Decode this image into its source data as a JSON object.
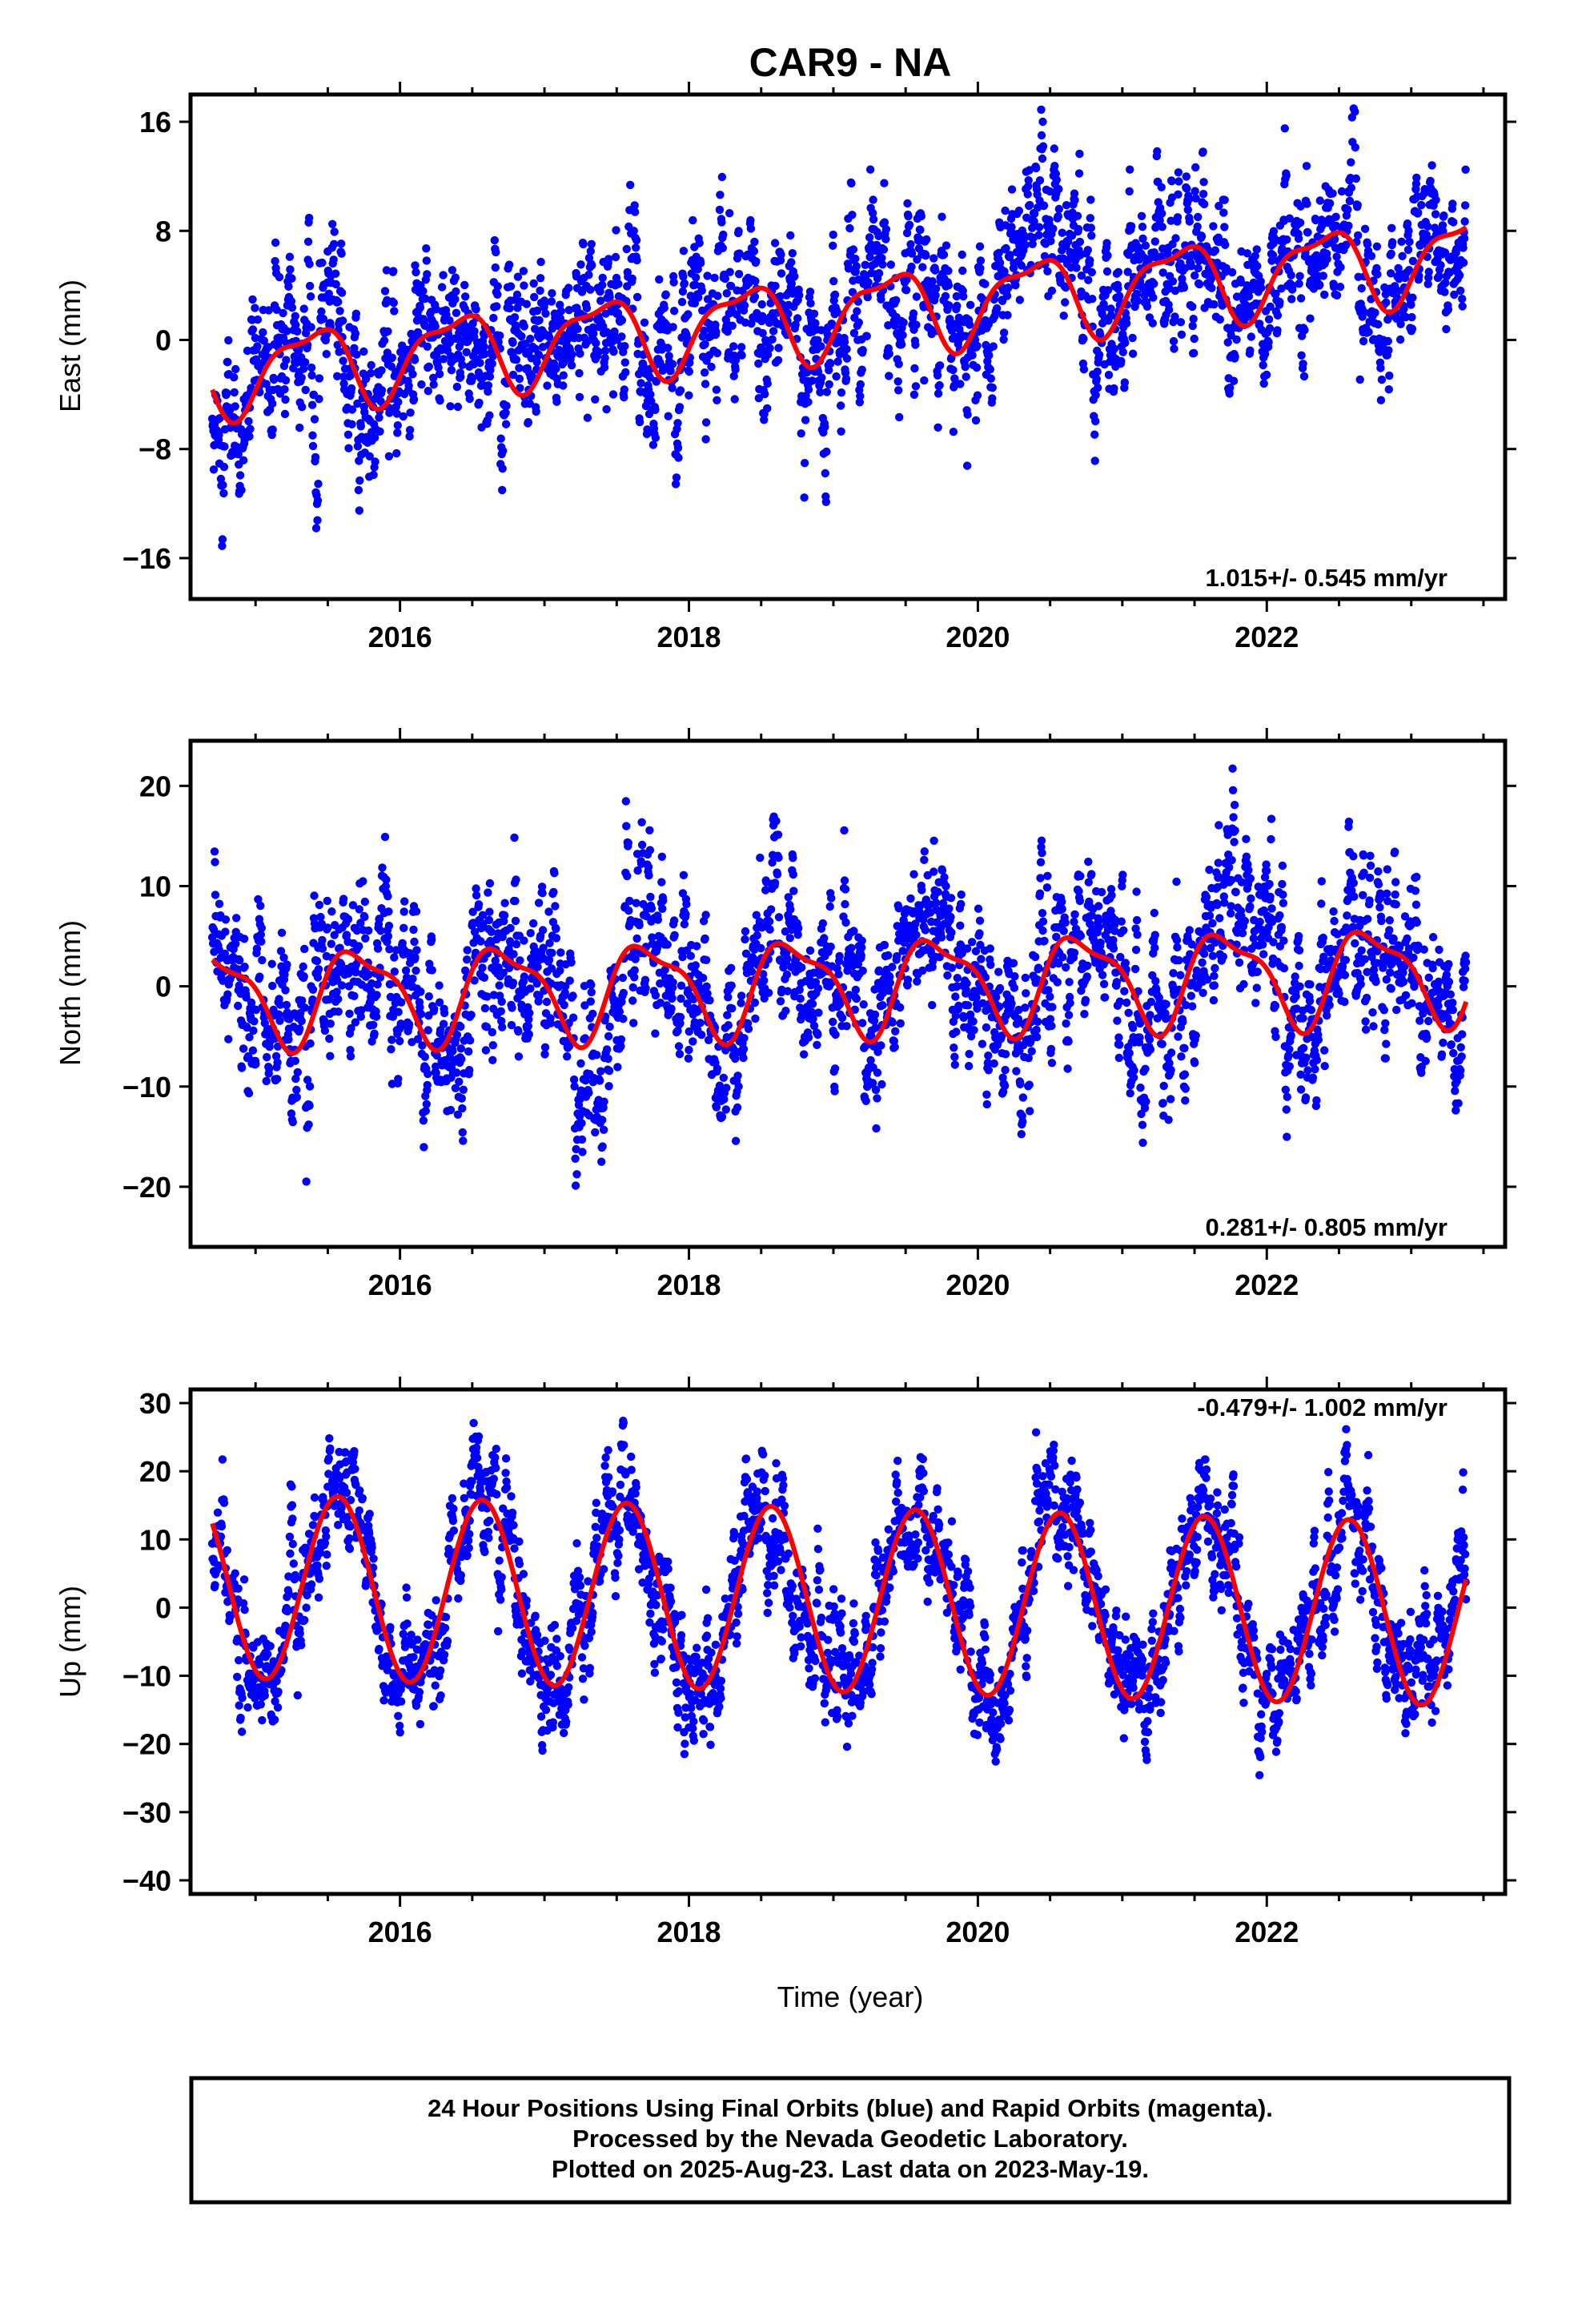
{
  "title": "CAR9 - NA",
  "colors": {
    "points": "#0000ff",
    "fit": "#ff0000",
    "frame": "#000000"
  },
  "x_tick_labels": [
    "2016",
    "2018",
    "2020",
    "2022"
  ],
  "x_axis_label": "Time (year)",
  "footer": {
    "line1": "24 Hour Positions Using Final Orbits (blue) and Rapid Orbits (magenta).",
    "line2": "Processed by the Nevada Geodetic Laboratory.",
    "line3": "Plotted on 2025-Aug-23. Last data on 2023-May-19."
  },
  "chart_data": [
    {
      "type": "scatter",
      "ylabel": "East (mm)",
      "rate_label": "1.015+/- 0.545 mm/yr",
      "rate_position": "bottom-right",
      "xlim": [
        2014.55,
        2023.65
      ],
      "ylim": [
        -19,
        18
      ],
      "yticks": [
        -16,
        -8,
        0,
        8,
        16
      ],
      "ytick_labels": [
        "−16",
        "−8",
        "0",
        "8",
        "16"
      ],
      "data_range": [
        2014.7,
        2023.38
      ],
      "fit": {
        "offset": -2.5,
        "trend": 1.015,
        "t0": 2014.7,
        "annual_amp": 2.8,
        "annual_phase": 5.5,
        "semiannual_amp": 1.0,
        "semiannual_phase": 0.5
      },
      "scatter_sigma": 3.6,
      "series": [
        {
          "name": "Final Orbits (blue)",
          "style": "points"
        },
        {
          "name": "",
          "style": "fit-line"
        }
      ]
    },
    {
      "type": "scatter",
      "ylabel": "North (mm)",
      "rate_label": "0.281+/- 0.805 mm/yr",
      "rate_position": "bottom-right",
      "xlim": [
        2014.55,
        2023.65
      ],
      "ylim": [
        -26,
        24.5
      ],
      "yticks": [
        -20,
        -10,
        0,
        10,
        20
      ],
      "ytick_labels": [
        "−20",
        "−10",
        "0",
        "10",
        "20"
      ],
      "data_range": [
        2014.7,
        2023.38
      ],
      "fit": {
        "offset": -1.0,
        "trend": 0.281,
        "t0": 2014.7,
        "annual_amp": 4.5,
        "annual_phase": 3.3,
        "semiannual_amp": 1.5,
        "semiannual_phase": 1.2
      },
      "scatter_sigma": 5.0,
      "series": [
        {
          "name": "Final Orbits (blue)",
          "style": "points"
        },
        {
          "name": "",
          "style": "fit-line"
        }
      ]
    },
    {
      "type": "scatter",
      "ylabel": "Up (mm)",
      "rate_label": "-0.479+/- 1.002 mm/yr",
      "rate_position": "top-right",
      "xlim": [
        2014.55,
        2023.65
      ],
      "ylim": [
        -42,
        32
      ],
      "yticks": [
        -40,
        -30,
        -20,
        -10,
        0,
        10,
        20,
        30
      ],
      "ytick_labels": [
        "−40",
        "−30",
        "−20",
        "−10",
        "0",
        "10",
        "20",
        "30"
      ],
      "data_range": [
        2014.7,
        2023.38
      ],
      "fit": {
        "offset": 3.2,
        "trend": -0.479,
        "t0": 2014.7,
        "annual_amp": 13.5,
        "annual_phase": -2.0,
        "semiannual_amp": 0.0,
        "semiannual_phase": 0.0
      },
      "scatter_sigma": 5.5,
      "series": [
        {
          "name": "Final Orbits (blue)",
          "style": "points"
        },
        {
          "name": "",
          "style": "fit-line"
        }
      ]
    }
  ]
}
